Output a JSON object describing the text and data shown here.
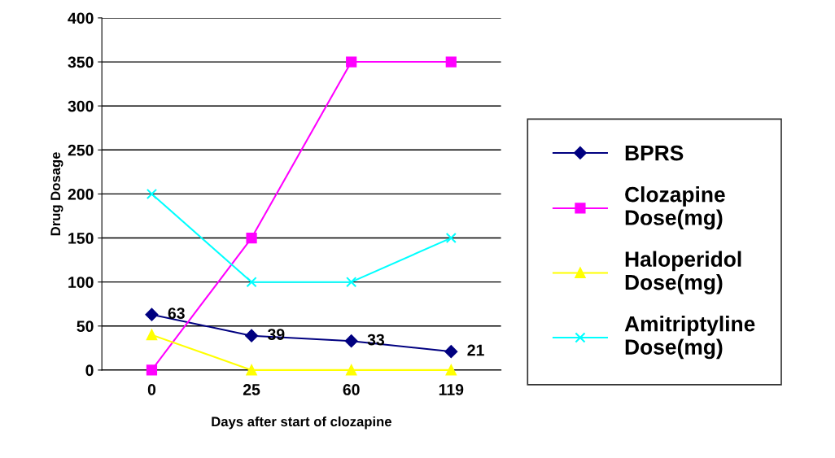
{
  "chart_data": {
    "type": "line",
    "xlabel": "Days after start of clozapine",
    "ylabel": "Drug Dosage",
    "categories": [
      "0",
      "25",
      "60",
      "119"
    ],
    "series": [
      {
        "name": "BPRS",
        "color": "#000080",
        "marker": "diamond",
        "values": [
          63,
          39,
          33,
          21
        ],
        "value_labels": [
          "63",
          "39",
          "33",
          "21"
        ]
      },
      {
        "name": "Clozapine\nDose(mg)",
        "color": "#ff00ff",
        "marker": "square",
        "values": [
          0,
          150,
          350,
          350
        ]
      },
      {
        "name": "Haloperidol\nDose(mg)",
        "color": "#ffff00",
        "marker": "triangle",
        "values": [
          40,
          0,
          0,
          0
        ]
      },
      {
        "name": "Amitriptyline\nDose(mg)",
        "color": "#00ffff",
        "marker": "cross",
        "values": [
          200,
          100,
          100,
          150
        ]
      }
    ],
    "ylim": [
      0,
      400
    ],
    "yticks": [
      0,
      50,
      100,
      150,
      200,
      250,
      300,
      350,
      400
    ],
    "grid": "y",
    "legend": "right",
    "line_style": "solid"
  }
}
